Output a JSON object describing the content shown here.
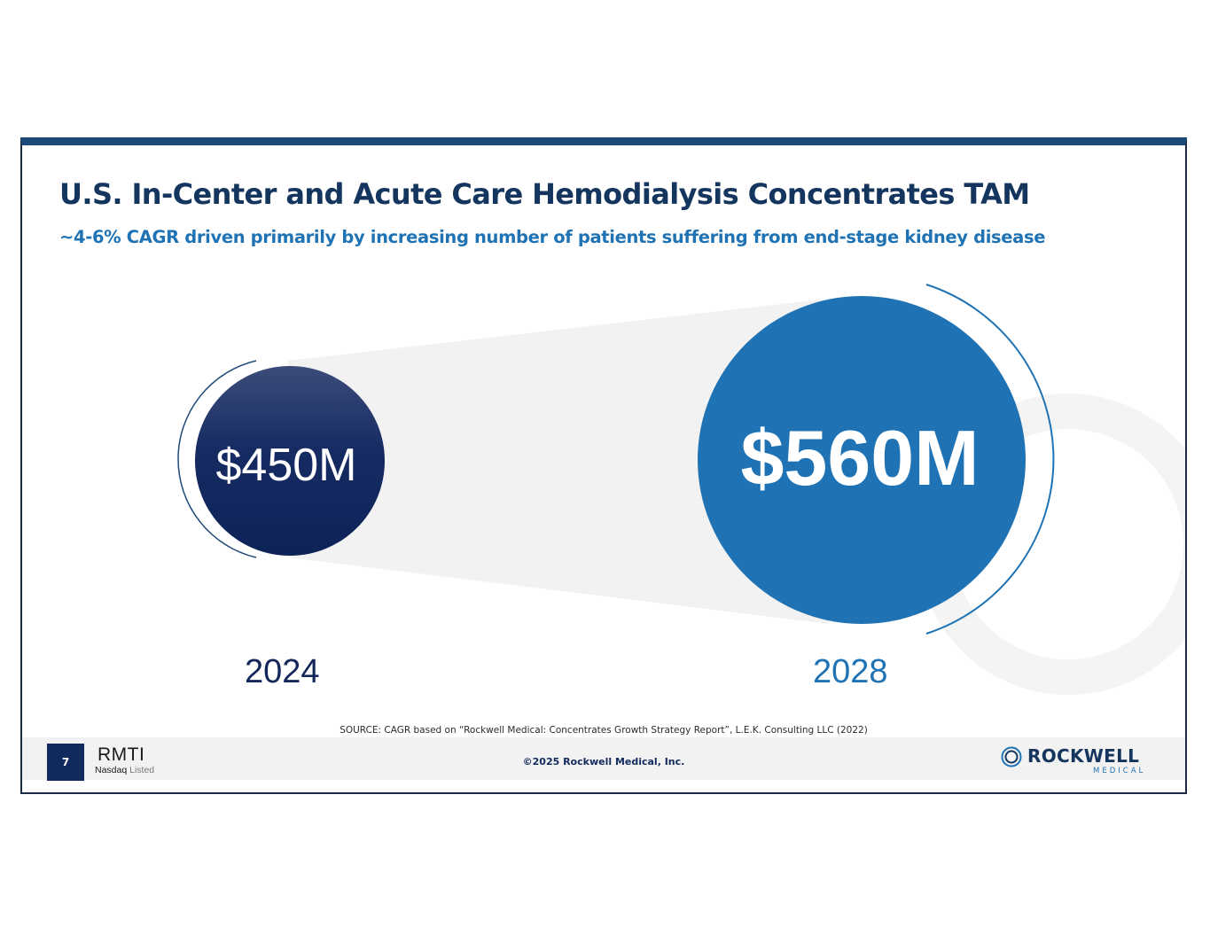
{
  "slide": {
    "title": "U.S. In-Center and Acute Care Hemodialysis Concentrates TAM",
    "subtitle": "~4-6% CAGR driven primarily by increasing number of patients suffering from end-stage kidney disease",
    "source": "SOURCE: CAGR based on “Rockwell Medical: Concentrates Growth Strategy Report”, L.E.K. Consulting LLC (2022)"
  },
  "chart_data": {
    "type": "bubble",
    "unit": "$M",
    "points": [
      {
        "year": "2024",
        "value": 450,
        "label": "$450M",
        "color": "#112a5e"
      },
      {
        "year": "2028",
        "value": 560,
        "label": "$560M",
        "color": "#1f73b4"
      }
    ]
  },
  "footer": {
    "page_number": "7",
    "ticker": "RMTI",
    "exchange": "Nasdaq",
    "listed": "Listed",
    "copyright": "©2025 Rockwell Medical, Inc.",
    "logo_word": "ROCKWELL",
    "logo_sub": "MEDICAL"
  },
  "colors": {
    "navy": "#112a5e",
    "blue": "#1f73b4",
    "title": "#14365e"
  }
}
